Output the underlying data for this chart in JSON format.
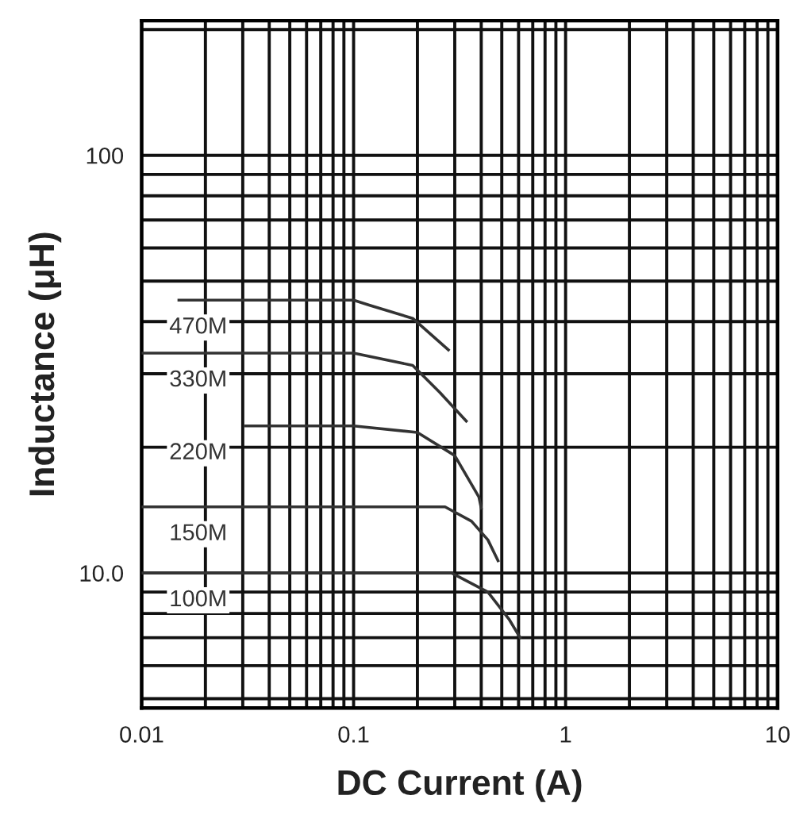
{
  "chart_data": {
    "type": "line",
    "xlabel": "DC Current (A)",
    "ylabel": "Inductance (μH)",
    "log": "xy",
    "xlim": [
      0.01,
      10
    ],
    "ylim": [
      4.75,
      210
    ],
    "xticks": [
      0.01,
      0.1,
      1,
      10
    ],
    "yticks": [
      {
        "value": 10,
        "label": "10.0"
      },
      {
        "value": 100,
        "label": "100"
      }
    ],
    "grid": true,
    "legend": false,
    "marker": "none",
    "line_style": "solid",
    "series": [
      {
        "name": "470M",
        "color": "#333333",
        "x": [
          0.015,
          0.1,
          0.12,
          0.19,
          0.28
        ],
        "values": [
          45,
          45,
          43.7,
          40.7,
          34.2
        ]
      },
      {
        "name": "330M",
        "color": "#333333",
        "x": [
          0.01,
          0.1,
          0.19,
          0.256,
          0.34
        ],
        "values": [
          33.6,
          33.6,
          31.4,
          27,
          23.1
        ]
      },
      {
        "name": "220M",
        "color": "#333333",
        "x": [
          0.031,
          0.1,
          0.2,
          0.3,
          0.39,
          0.4
        ],
        "values": [
          22.5,
          22.5,
          21.7,
          19.1,
          15.2,
          14.3
        ]
      },
      {
        "name": "150M",
        "color": "#333333",
        "x": [
          0.01,
          0.27,
          0.36,
          0.43,
          0.48
        ],
        "values": [
          14.4,
          14.4,
          13.3,
          12.0,
          10.7
        ]
      },
      {
        "name": "100M",
        "color": "#333333",
        "x": [
          0.01,
          0.29,
          0.43,
          0.54,
          0.61
        ],
        "values": [
          10,
          10,
          9.0,
          7.76,
          7.0
        ]
      }
    ]
  }
}
